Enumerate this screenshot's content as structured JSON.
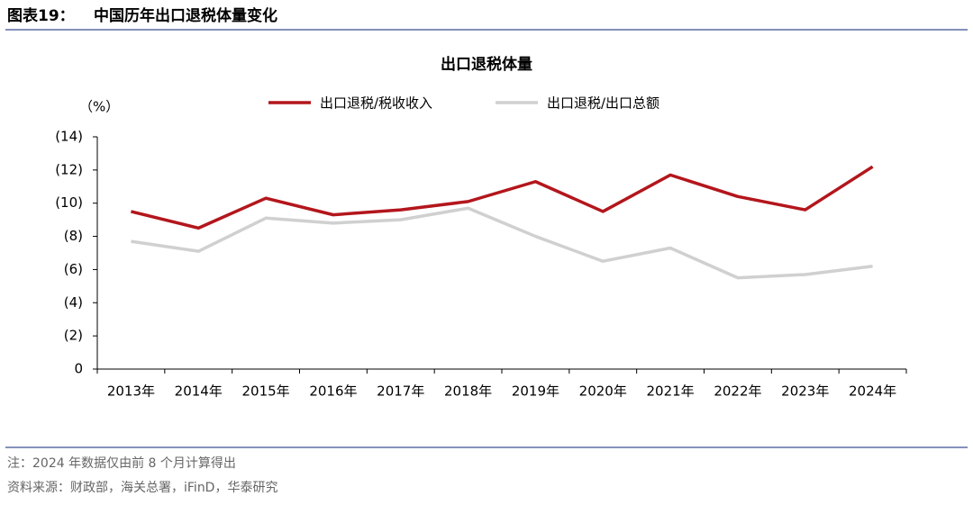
{
  "header": {
    "figure_label": "图表19：",
    "title": "中国历年出口退税体量变化"
  },
  "chart_data": {
    "type": "line",
    "title": "出口退税体量",
    "y_label": "（%）",
    "categories": [
      "2013年",
      "2014年",
      "2015年",
      "2016年",
      "2017年",
      "2018年",
      "2019年",
      "2020年",
      "2021年",
      "2022年",
      "2023年",
      "2024年"
    ],
    "series": [
      {
        "name": "出口退税/税收收入",
        "color": "#b3161c",
        "values": [
          9.5,
          8.5,
          10.3,
          9.3,
          9.6,
          10.1,
          11.3,
          9.5,
          11.7,
          10.4,
          9.6,
          12.2
        ]
      },
      {
        "name": "出口退税/出口总额",
        "color": "#d0d0d0",
        "values": [
          7.7,
          7.1,
          9.1,
          8.8,
          9.0,
          9.7,
          8.0,
          6.5,
          7.3,
          5.5,
          5.7,
          6.2
        ]
      }
    ],
    "ylim": [
      0,
      14
    ],
    "yticks": [
      0,
      {
        "value": 2,
        "label": "(2)"
      },
      {
        "value": 4,
        "label": "(4)"
      },
      {
        "value": 6,
        "label": "(6)"
      },
      {
        "value": 8,
        "label": "(8)"
      },
      {
        "value": 10,
        "label": "(10)"
      },
      {
        "value": 12,
        "label": "(12)"
      },
      {
        "value": 14,
        "label": "(14)"
      }
    ],
    "grid": false,
    "legend": "top"
  },
  "notes": [
    "注：2024 年数据仅由前 8 个月计算得出",
    "资料来源：财政部，海关总署，iFinD，华泰研究"
  ]
}
